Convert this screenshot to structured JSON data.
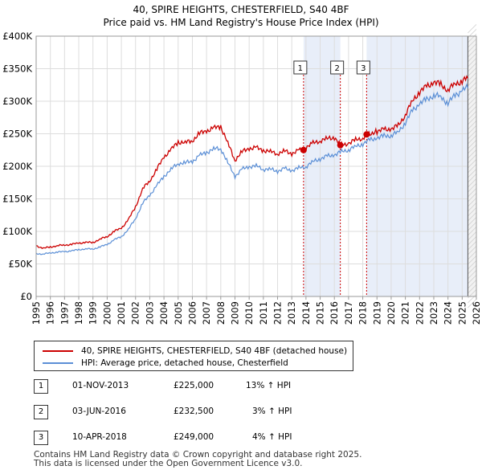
{
  "chart_data": {
    "type": "line",
    "title": "40, SPIRE HEIGHTS, CHESTERFIELD, S40 4BF",
    "subtitle": "Price paid vs. HM Land Registry's House Price Index (HPI)",
    "xlim": [
      1995,
      2026
    ],
    "ylim": [
      0,
      400000
    ],
    "x_ticks": [
      1995,
      1996,
      1997,
      1998,
      1999,
      2000,
      2001,
      2002,
      2003,
      2004,
      2005,
      2006,
      2007,
      2008,
      2009,
      2010,
      2011,
      2012,
      2013,
      2014,
      2015,
      2016,
      2017,
      2018,
      2019,
      2020,
      2021,
      2022,
      2023,
      2024,
      2025,
      2026
    ],
    "y_ticks": [
      {
        "value": 0,
        "label": "£0"
      },
      {
        "value": 50000,
        "label": "£50K"
      },
      {
        "value": 100000,
        "label": "£100K"
      },
      {
        "value": 150000,
        "label": "£150K"
      },
      {
        "value": 200000,
        "label": "£200K"
      },
      {
        "value": 250000,
        "label": "£250K"
      },
      {
        "value": 300000,
        "label": "£300K"
      },
      {
        "value": 350000,
        "label": "£350K"
      },
      {
        "value": 400000,
        "label": "£400K"
      }
    ],
    "forecast_start": 2025.4,
    "shaded_ranges": [
      [
        2013.83,
        2016.42
      ],
      [
        2018.27,
        2025.4
      ]
    ],
    "series": [
      {
        "name": "40, SPIRE HEIGHTS, CHESTERFIELD, S40 4BF (detached house)",
        "color": "#cc0000",
        "x": [
          1995.0,
          1995.5,
          1996.0,
          1996.5,
          1997.0,
          1997.5,
          1998.0,
          1998.5,
          1999.0,
          1999.5,
          2000.0,
          2000.5,
          2001.0,
          2001.5,
          2002.0,
          2002.5,
          2003.0,
          2003.5,
          2004.0,
          2004.5,
          2005.0,
          2005.5,
          2006.0,
          2006.5,
          2007.0,
          2007.5,
          2008.0,
          2008.5,
          2009.0,
          2009.5,
          2010.0,
          2010.5,
          2011.0,
          2011.5,
          2012.0,
          2012.5,
          2013.0,
          2013.5,
          2013.83,
          2014.5,
          2015.0,
          2015.5,
          2016.0,
          2016.42,
          2017.0,
          2017.5,
          2018.0,
          2018.27,
          2019.0,
          2019.5,
          2020.0,
          2020.5,
          2021.0,
          2021.5,
          2022.0,
          2022.5,
          2023.0,
          2023.5,
          2024.0,
          2024.5,
          2025.0,
          2025.4
        ],
        "values": [
          78000,
          74000,
          76000,
          78000,
          79000,
          80000,
          82000,
          83000,
          83000,
          88000,
          92000,
          100000,
          105000,
          118000,
          138000,
          165000,
          178000,
          195000,
          215000,
          225000,
          238000,
          236000,
          240000,
          250000,
          255000,
          258000,
          262000,
          235000,
          210000,
          222000,
          228000,
          228000,
          225000,
          222000,
          220000,
          223000,
          220000,
          224000,
          225000,
          235000,
          240000,
          242000,
          245000,
          232500,
          236000,
          240000,
          244000,
          249000,
          254000,
          256000,
          258000,
          262000,
          280000,
          300000,
          315000,
          322000,
          330000,
          325000,
          318000,
          326000,
          332000,
          335000
        ]
      },
      {
        "name": "HPI: Average price, detached house, Chesterfield",
        "color": "#5b8fd6",
        "x": [
          1995.0,
          1995.5,
          1996.0,
          1996.5,
          1997.0,
          1997.5,
          1998.0,
          1998.5,
          1999.0,
          1999.5,
          2000.0,
          2000.5,
          2001.0,
          2001.5,
          2002.0,
          2002.5,
          2003.0,
          2003.5,
          2004.0,
          2004.5,
          2005.0,
          2005.5,
          2006.0,
          2006.5,
          2007.0,
          2007.5,
          2008.0,
          2008.5,
          2009.0,
          2009.5,
          2010.0,
          2010.5,
          2011.0,
          2011.5,
          2012.0,
          2012.5,
          2013.0,
          2013.5,
          2014.0,
          2014.5,
          2015.0,
          2015.5,
          2016.0,
          2016.5,
          2017.0,
          2017.5,
          2018.0,
          2018.5,
          2019.0,
          2019.5,
          2020.0,
          2020.5,
          2021.0,
          2021.5,
          2022.0,
          2022.5,
          2023.0,
          2023.5,
          2024.0,
          2024.5,
          2025.0,
          2025.4
        ],
        "values": [
          66000,
          65000,
          67000,
          68000,
          69000,
          70000,
          72000,
          73000,
          73000,
          76000,
          80000,
          87000,
          92000,
          103000,
          120000,
          143000,
          156000,
          170000,
          185000,
          195000,
          205000,
          205000,
          208000,
          216000,
          222000,
          226000,
          228000,
          205000,
          185000,
          195000,
          200000,
          200000,
          196000,
          195000,
          193000,
          196000,
          194000,
          197000,
          200000,
          207000,
          212000,
          215000,
          218000,
          222000,
          226000,
          230000,
          235000,
          240000,
          244000,
          246000,
          248000,
          252000,
          268000,
          285000,
          297000,
          302000,
          310000,
          306000,
          298000,
          308000,
          318000,
          320000
        ]
      }
    ],
    "markers": [
      {
        "label": "1",
        "x": 2013.83,
        "value": 225000
      },
      {
        "label": "2",
        "x": 2016.42,
        "value": 232500
      },
      {
        "label": "3",
        "x": 2018.27,
        "value": 249000
      }
    ]
  },
  "legend": {
    "property_label": "40, SPIRE HEIGHTS, CHESTERFIELD, S40 4BF (detached house)",
    "hpi_label": "HPI: Average price, detached house, Chesterfield"
  },
  "sales": [
    {
      "num": "1",
      "date": "01-NOV-2013",
      "price": "£225,000",
      "hpi": "13% ↑ HPI"
    },
    {
      "num": "2",
      "date": "03-JUN-2016",
      "price": "£232,500",
      "hpi": "3% ↑ HPI"
    },
    {
      "num": "3",
      "date": "10-APR-2018",
      "price": "£249,000",
      "hpi": "4% ↑ HPI"
    }
  ],
  "footer": {
    "line1": "Contains HM Land Registry data © Crown copyright and database right 2025.",
    "line2": "This data is licensed under the Open Government Licence v3.0."
  },
  "colors": {
    "property": "#cc0000",
    "hpi": "#5b8fd6",
    "shade": "#e8eef9",
    "grid": "#dddddd",
    "marker_line": "#cc0000"
  }
}
